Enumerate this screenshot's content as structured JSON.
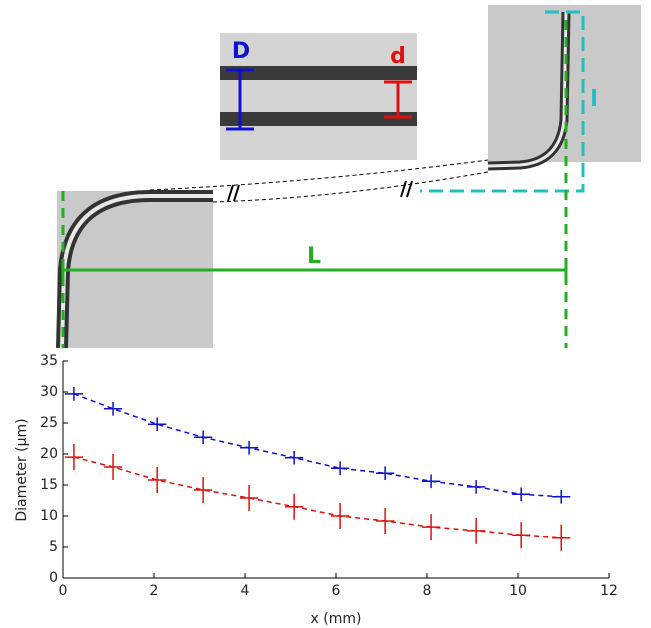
{
  "diagram": {
    "labels": {
      "D": "D",
      "d": "d",
      "l": "l",
      "L": "L"
    }
  },
  "chart_data": {
    "type": "scatter",
    "xlabel": "x (mm)",
    "ylabel": "Diameter (μm)",
    "xlim": [
      0,
      12
    ],
    "xticks": [
      0,
      2,
      4,
      6,
      8,
      10,
      12
    ],
    "ylim": [
      0,
      35
    ],
    "yticks": [
      0,
      5,
      10,
      15,
      20,
      25,
      30,
      35
    ],
    "series": [
      {
        "color": "#1010d0",
        "x": [
          0.24,
          1.1,
          2.07,
          3.08,
          4.09,
          5.08,
          6.09,
          7.08,
          8.09,
          9.08,
          10.07,
          10.95
        ],
        "values": [
          29.7,
          27.3,
          24.8,
          22.7,
          21.0,
          19.4,
          17.7,
          16.9,
          15.6,
          14.7,
          13.5,
          13.1
        ],
        "errors": [
          1.1,
          1.1,
          1.1,
          1.1,
          1.1,
          1.1,
          1.1,
          1.1,
          1.1,
          1.1,
          1.1,
          1.1
        ],
        "xerr": [
          0.2,
          0.2,
          0.2,
          0.2,
          0.2,
          0.2,
          0.2,
          0.2,
          0.2,
          0.2,
          0.2,
          0.2
        ]
      },
      {
        "color": "#e01010",
        "x": [
          0.24,
          1.1,
          2.07,
          3.08,
          4.09,
          5.08,
          6.09,
          7.08,
          8.09,
          9.08,
          10.07,
          10.95
        ],
        "values": [
          19.5,
          17.9,
          15.8,
          14.2,
          12.9,
          11.5,
          10.0,
          9.2,
          8.2,
          7.6,
          6.9,
          6.5
        ],
        "errors": [
          2.1,
          2.1,
          2.1,
          2.1,
          2.1,
          2.1,
          2.1,
          2.1,
          2.1,
          2.1,
          2.1,
          2.1
        ],
        "xerr": [
          0.2,
          0.2,
          0.2,
          0.2,
          0.2,
          0.2,
          0.2,
          0.2,
          0.2,
          0.2,
          0.2,
          0.2
        ]
      }
    ]
  }
}
